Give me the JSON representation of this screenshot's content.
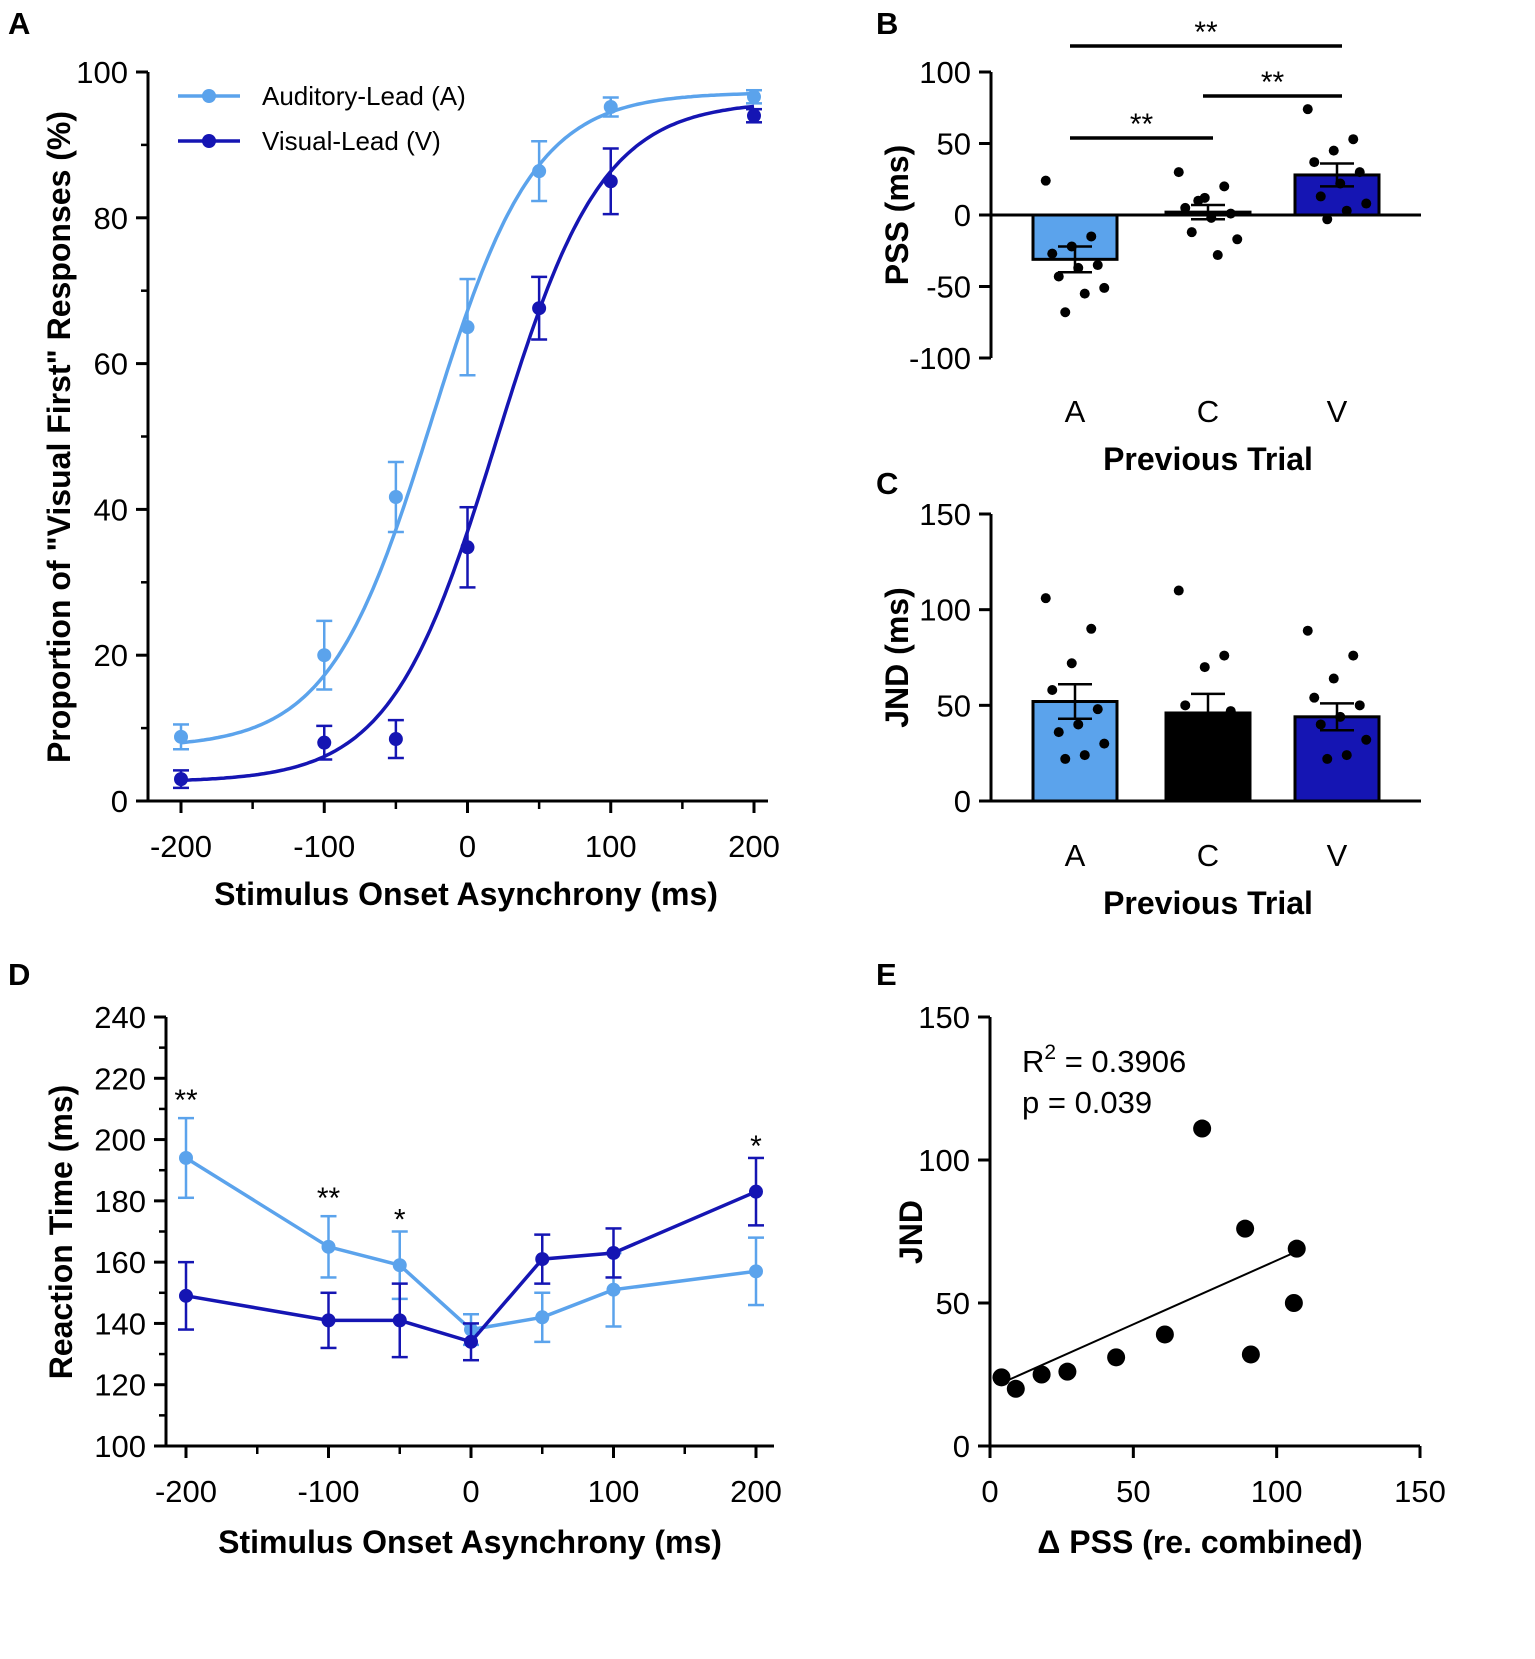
{
  "colors": {
    "auditory": "#5ba3ec",
    "visual": "#1515b3",
    "combined": "#000000",
    "axis": "#000000"
  },
  "chart_data": [
    {
      "id": "A",
      "panel_label": "A",
      "type": "line",
      "title": "",
      "xlabel": "Stimulus Onset Asynchrony (ms)",
      "ylabel": "Proportion of \"Visual First\" Responses (%)",
      "xlim": [
        -210,
        210
      ],
      "ylim": [
        0,
        100
      ],
      "xticks": [
        -200,
        -100,
        0,
        100,
        200
      ],
      "yticks": [
        0,
        20,
        40,
        60,
        80,
        100
      ],
      "legend": {
        "position": "top-left",
        "entries": [
          "Auditory-Lead (A)",
          "Visual-Lead (V)"
        ]
      },
      "series": [
        {
          "name": "Auditory-Lead (A)",
          "color_key": "auditory",
          "x": [
            -200,
            -100,
            -50,
            0,
            50,
            100,
            200
          ],
          "y": [
            8.8,
            20.0,
            41.7,
            65.0,
            86.4,
            95.2,
            96.6
          ],
          "err": [
            1.7,
            4.7,
            4.8,
            6.6,
            4.1,
            1.3,
            0.9
          ],
          "fit": {
            "type": "logistic",
            "min": 7.3,
            "max": 97.2,
            "x50": -25,
            "scale": 36
          }
        },
        {
          "name": "Visual-Lead (V)",
          "color_key": "visual",
          "x": [
            -200,
            -100,
            -50,
            0,
            50,
            100,
            200
          ],
          "y": [
            3.0,
            8.0,
            8.5,
            34.8,
            67.6,
            85.0,
            94.0
          ],
          "err": [
            1.2,
            2.3,
            2.6,
            5.5,
            4.3,
            4.5,
            0.9
          ],
          "fit": {
            "type": "logistic",
            "min": 2.6,
            "max": 96.0,
            "x50": 20,
            "scale": 37
          }
        }
      ]
    },
    {
      "id": "B",
      "panel_label": "B",
      "type": "bar",
      "xlabel": "Previous Trial",
      "ylabel": "PSS (ms)",
      "ylim": [
        -100,
        100
      ],
      "yticks": [
        -100,
        -50,
        0,
        50,
        100
      ],
      "categories": [
        "A",
        "C",
        "V"
      ],
      "color_keys": [
        "auditory",
        "combined",
        "visual"
      ],
      "values": [
        -31,
        2,
        28
      ],
      "err": [
        9,
        5,
        8
      ],
      "points": [
        [
          24,
          -15,
          -22,
          -27,
          -35,
          -37,
          -43,
          -51,
          -55,
          -68
        ],
        [
          30,
          20,
          12,
          5,
          1,
          -2,
          -12,
          -17,
          -28,
          10
        ],
        [
          74,
          53,
          45,
          37,
          30,
          22,
          13,
          8,
          3,
          -3
        ]
      ],
      "significance": [
        {
          "pair": [
            "A",
            "C"
          ],
          "label": "**"
        },
        {
          "pair": [
            "C",
            "V"
          ],
          "label": "**"
        },
        {
          "pair": [
            "A",
            "V"
          ],
          "label": "**"
        }
      ]
    },
    {
      "id": "C",
      "panel_label": "C",
      "type": "bar",
      "xlabel": "Previous Trial",
      "ylabel": "JND (ms)",
      "ylim": [
        0,
        150
      ],
      "yticks": [
        0,
        50,
        100,
        150
      ],
      "categories": [
        "A",
        "C",
        "V"
      ],
      "color_keys": [
        "auditory",
        "combined",
        "visual"
      ],
      "values": [
        52,
        46,
        44
      ],
      "err": [
        9,
        10,
        7
      ],
      "points": [
        [
          106,
          90,
          72,
          58,
          48,
          40,
          36,
          30,
          24,
          22
        ],
        [
          110,
          76,
          70,
          50,
          47,
          42,
          38,
          35,
          32,
          28
        ],
        [
          89,
          76,
          64,
          54,
          50,
          44,
          40,
          32,
          24,
          22
        ]
      ]
    },
    {
      "id": "D",
      "panel_label": "D",
      "type": "line",
      "xlabel": "Stimulus Onset Asynchrony (ms)",
      "ylabel": "Reaction Time (ms)",
      "xlim": [
        -210,
        210
      ],
      "ylim": [
        100,
        240
      ],
      "xticks": [
        -200,
        -100,
        0,
        100,
        200
      ],
      "yticks": [
        100,
        120,
        140,
        160,
        180,
        200,
        220,
        240
      ],
      "series": [
        {
          "name": "Auditory-Lead (A)",
          "color_key": "auditory",
          "x": [
            -200,
            -100,
            -50,
            0,
            50,
            100,
            200
          ],
          "y": [
            194,
            165,
            159,
            138,
            142,
            151,
            157
          ],
          "err": [
            13,
            10,
            11,
            5,
            8,
            12,
            11
          ]
        },
        {
          "name": "Visual-Lead (V)",
          "color_key": "visual",
          "x": [
            -200,
            -100,
            -50,
            0,
            50,
            100,
            200
          ],
          "y": [
            149,
            141,
            141,
            134,
            161,
            163,
            183
          ],
          "err": [
            11,
            9,
            12,
            6,
            8,
            8,
            11
          ]
        }
      ],
      "significance": [
        {
          "x": -200,
          "label": "**"
        },
        {
          "x": -100,
          "label": "**"
        },
        {
          "x": -50,
          "label": "*"
        },
        {
          "x": 200,
          "label": "*"
        }
      ]
    },
    {
      "id": "E",
      "panel_label": "E",
      "type": "scatter",
      "xlabel": "Δ PSS (re. combined)",
      "ylabel": "JND",
      "xlim": [
        0,
        150
      ],
      "ylim": [
        0,
        150
      ],
      "xticks": [
        0,
        50,
        100,
        150
      ],
      "yticks": [
        0,
        50,
        100,
        150
      ],
      "x": [
        4,
        9,
        18,
        27,
        44,
        61,
        74,
        89,
        91,
        106,
        107
      ],
      "y": [
        24,
        20,
        25,
        26,
        31,
        39,
        111,
        76,
        32,
        50,
        69
      ],
      "fit": {
        "x": [
          4,
          107
        ],
        "y": [
          22,
          68
        ]
      },
      "annotation": {
        "r2_label": "R",
        "r2_sup": "2",
        "r2_value": " = 0.3906",
        "p": "p = 0.039"
      }
    }
  ]
}
